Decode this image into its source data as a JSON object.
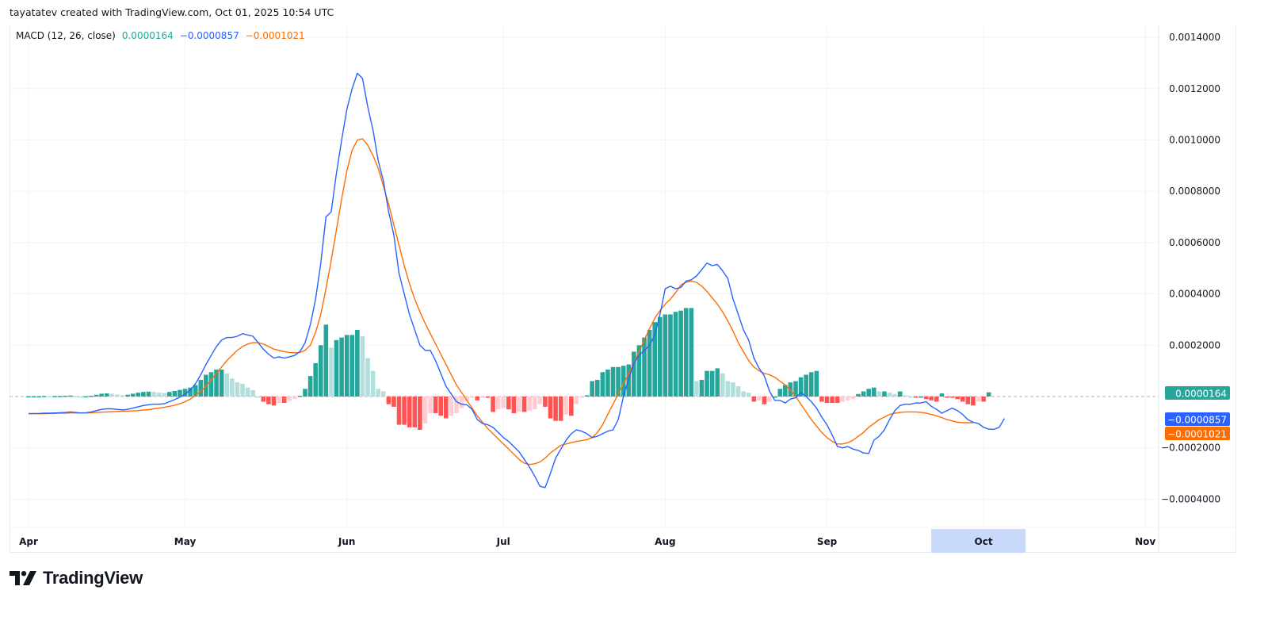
{
  "header": {
    "attribution": "tayatatev created with TradingView.com, Oct 01, 2025 10:54 UTC"
  },
  "legend": {
    "indicator": "MACD (12, 26, close)",
    "histogram_value": "0.0000164",
    "macd_value": "−0.0000857",
    "signal_value": "−0.0001021"
  },
  "badges": {
    "histogram": "0.0000164",
    "macd": "−0.0000857",
    "signal": "−0.0001021"
  },
  "footer": {
    "logo_text": "TradingView"
  },
  "colors": {
    "macd_line": "#2962ff",
    "signal_line": "#ff6d00",
    "hist_up_strong": "#26a69a",
    "hist_up_weak": "#b2dfdb",
    "hist_down_strong": "#ff5252",
    "hist_down_weak": "#ffcdd2",
    "grid": "#f0f3fa",
    "time_highlight": "#c9d9fc"
  },
  "chart_data": {
    "type": "line",
    "title": "MACD (12, 26, close)",
    "xlabel": "",
    "ylabel": "",
    "unit_note": "series values in units of 1e-4",
    "x_start": "Apr 1",
    "x_end": "Oct 1",
    "time_ticks": [
      {
        "label": "Apr",
        "day": 0
      },
      {
        "label": "May",
        "day": 30
      },
      {
        "label": "Jun",
        "day": 61
      },
      {
        "label": "Jul",
        "day": 91
      },
      {
        "label": "Aug",
        "day": 122
      },
      {
        "label": "Sep",
        "day": 153
      },
      {
        "label": "Oct",
        "day": 183,
        "highlighted": true
      },
      {
        "label": "Nov",
        "day": 214
      }
    ],
    "y_ticks": [
      "0.0014000",
      "0.0012000",
      "0.0010000",
      "0.0008000",
      "0.0006000",
      "0.0004000",
      "0.0002000",
      "−0.0002000",
      "−0.0004000"
    ],
    "y_tick_values": [
      14,
      12,
      10,
      8,
      6,
      4,
      2,
      -2,
      -4
    ],
    "ylim": [
      -4.2,
      14.2
    ],
    "grid": true,
    "series": [
      {
        "name": "MACD",
        "color": "#2962ff",
        "values": [
          -0.66,
          -0.66,
          -0.66,
          -0.65,
          -0.65,
          -0.64,
          -0.63,
          -0.62,
          -0.6,
          -0.62,
          -0.64,
          -0.63,
          -0.6,
          -0.55,
          -0.5,
          -0.48,
          -0.48,
          -0.5,
          -0.52,
          -0.5,
          -0.45,
          -0.4,
          -0.35,
          -0.32,
          -0.3,
          -0.3,
          -0.28,
          -0.2,
          -0.12,
          -0.02,
          0.1,
          0.25,
          0.5,
          0.85,
          1.25,
          1.6,
          1.95,
          2.2,
          2.3,
          2.3,
          2.35,
          2.45,
          2.4,
          2.35,
          2.1,
          1.85,
          1.65,
          1.5,
          1.55,
          1.5,
          1.55,
          1.6,
          1.75,
          2.1,
          2.8,
          3.8,
          5.2,
          7.0,
          7.2,
          8.7,
          10.0,
          11.2,
          12.0,
          12.6,
          12.4,
          11.3,
          10.4,
          9.2,
          8.4,
          7.2,
          6.3,
          4.8,
          4.0,
          3.2,
          2.6,
          2.0,
          1.8,
          1.8,
          1.4,
          0.9,
          0.4,
          0.1,
          -0.2,
          -0.3,
          -0.32,
          -0.5,
          -0.9,
          -1.05,
          -1.1,
          -1.2,
          -1.4,
          -1.6,
          -1.75,
          -1.95,
          -2.15,
          -2.45,
          -2.75,
          -3.1,
          -3.5,
          -3.55,
          -3.0,
          -2.4,
          -2.05,
          -1.7,
          -1.45,
          -1.3,
          -1.35,
          -1.45,
          -1.6,
          -1.55,
          -1.45,
          -1.35,
          -1.3,
          -0.9,
          0.0,
          0.7,
          1.3,
          1.6,
          1.8,
          2.0,
          2.4,
          3.2,
          4.2,
          4.3,
          4.2,
          4.25,
          4.5,
          4.55,
          4.7,
          4.95,
          5.2,
          5.1,
          5.15,
          4.9,
          4.6,
          3.8,
          3.2,
          2.6,
          2.2,
          1.5,
          1.1,
          0.8,
          0.2,
          -0.15,
          -0.15,
          -0.25,
          -0.1,
          -0.05,
          0.15,
          0.0,
          -0.2,
          -0.45,
          -0.8,
          -1.1,
          -1.5,
          -1.95,
          -2.0,
          -1.95,
          -2.05,
          -2.1,
          -2.2,
          -2.22,
          -1.7,
          -1.55,
          -1.3,
          -0.9,
          -0.55,
          -0.35,
          -0.3,
          -0.3,
          -0.25,
          -0.25,
          -0.2,
          -0.38,
          -0.5,
          -0.65,
          -0.55,
          -0.45,
          -0.55,
          -0.7,
          -0.9,
          -1.0,
          -1.05,
          -1.2,
          -1.27,
          -1.28,
          -1.2,
          -0.857
        ]
      },
      {
        "name": "Signal",
        "color": "#ff6d00",
        "values": [
          -0.67,
          -0.67,
          -0.67,
          -0.67,
          -0.66,
          -0.66,
          -0.65,
          -0.65,
          -0.64,
          -0.64,
          -0.64,
          -0.64,
          -0.63,
          -0.62,
          -0.61,
          -0.6,
          -0.59,
          -0.58,
          -0.57,
          -0.57,
          -0.56,
          -0.55,
          -0.53,
          -0.51,
          -0.48,
          -0.45,
          -0.42,
          -0.38,
          -0.34,
          -0.28,
          -0.2,
          -0.1,
          0.05,
          0.2,
          0.4,
          0.65,
          0.9,
          1.15,
          1.4,
          1.6,
          1.8,
          1.95,
          2.05,
          2.1,
          2.1,
          2.05,
          1.95,
          1.85,
          1.8,
          1.75,
          1.72,
          1.7,
          1.72,
          1.8,
          2.0,
          2.5,
          3.2,
          4.2,
          5.3,
          6.5,
          7.7,
          8.8,
          9.6,
          10.0,
          10.05,
          9.8,
          9.4,
          8.9,
          8.2,
          7.5,
          6.7,
          5.9,
          5.1,
          4.4,
          3.8,
          3.3,
          2.85,
          2.45,
          2.05,
          1.65,
          1.25,
          0.85,
          0.45,
          0.15,
          -0.15,
          -0.45,
          -0.75,
          -1.0,
          -1.25,
          -1.45,
          -1.65,
          -1.85,
          -2.05,
          -2.25,
          -2.45,
          -2.6,
          -2.65,
          -2.62,
          -2.55,
          -2.4,
          -2.2,
          -2.05,
          -1.9,
          -1.85,
          -1.8,
          -1.75,
          -1.72,
          -1.68,
          -1.6,
          -1.4,
          -1.1,
          -0.7,
          -0.3,
          0.1,
          0.5,
          0.9,
          1.3,
          1.75,
          2.2,
          2.65,
          3.05,
          3.35,
          3.6,
          3.8,
          4.05,
          4.35,
          4.45,
          4.5,
          4.45,
          4.3,
          4.1,
          3.85,
          3.6,
          3.3,
          2.95,
          2.55,
          2.1,
          1.75,
          1.4,
          1.15,
          1.0,
          0.9,
          0.85,
          0.75,
          0.6,
          0.45,
          0.25,
          0.0,
          -0.3,
          -0.6,
          -0.9,
          -1.15,
          -1.4,
          -1.6,
          -1.75,
          -1.85,
          -1.85,
          -1.8,
          -1.7,
          -1.55,
          -1.4,
          -1.2,
          -1.05,
          -0.9,
          -0.8,
          -0.7,
          -0.65,
          -0.62,
          -0.6,
          -0.6,
          -0.6,
          -0.62,
          -0.65,
          -0.7,
          -0.75,
          -0.82,
          -0.9,
          -0.95,
          -1.0,
          -1.02,
          -1.02,
          -1.021
        ]
      },
      {
        "name": "Histogram",
        "type": "bar",
        "values": [
          0.01,
          0.01,
          0.01,
          0.02,
          0.01,
          0.02,
          0.02,
          0.03,
          0.04,
          0.02,
          0.0,
          0.01,
          0.03,
          0.07,
          0.11,
          0.12,
          0.11,
          0.08,
          0.05,
          0.07,
          0.11,
          0.15,
          0.18,
          0.19,
          0.18,
          0.15,
          0.14,
          0.18,
          0.22,
          0.26,
          0.3,
          0.35,
          0.45,
          0.65,
          0.85,
          0.95,
          1.05,
          1.05,
          0.9,
          0.7,
          0.55,
          0.5,
          0.35,
          0.25,
          0.0,
          -0.2,
          -0.3,
          -0.35,
          -0.25,
          -0.25,
          -0.17,
          -0.1,
          0.03,
          0.3,
          0.8,
          1.3,
          2.0,
          2.8,
          1.9,
          2.2,
          2.3,
          2.4,
          2.4,
          2.6,
          2.35,
          1.5,
          1.0,
          0.3,
          0.2,
          -0.3,
          -0.4,
          -1.1,
          -1.1,
          -1.2,
          -1.2,
          -1.3,
          -1.05,
          -0.65,
          -0.65,
          -0.75,
          -0.85,
          -0.75,
          -0.65,
          -0.45,
          -0.17,
          -0.05,
          -0.15,
          -0.05,
          -0.05,
          -0.6,
          -0.5,
          -0.45,
          -0.5,
          -0.65,
          -0.6,
          -0.6,
          -0.55,
          -0.5,
          -0.3,
          -0.4,
          -0.85,
          -0.95,
          -0.95,
          -0.7,
          -0.75,
          -0.3,
          -0.05,
          0.05,
          0.6,
          0.65,
          0.95,
          1.05,
          1.15,
          1.15,
          1.2,
          1.25,
          1.75,
          2.0,
          2.3,
          2.6,
          2.9,
          3.1,
          3.2,
          3.2,
          3.3,
          3.35,
          3.45,
          3.45,
          0.6,
          0.65,
          1.0,
          1.0,
          1.1,
          0.9,
          0.6,
          0.55,
          0.4,
          0.2,
          0.15,
          -0.2,
          -0.15,
          -0.3,
          -0.2,
          0.0,
          0.3,
          0.45,
          0.55,
          0.6,
          0.75,
          0.85,
          0.95,
          1.0,
          -0.2,
          -0.25,
          -0.25,
          -0.25,
          -0.2,
          -0.15,
          -0.1,
          0.1,
          0.2,
          0.3,
          0.35,
          0.2,
          0.2,
          0.15,
          0.1,
          0.2,
          0.05,
          0.0,
          -0.02,
          0.0,
          -0.1,
          -0.15,
          -0.2,
          0.12,
          -0.02,
          -0.05,
          -0.1,
          -0.2,
          -0.3,
          -0.35,
          -0.2,
          -0.2,
          0.164
        ]
      }
    ],
    "last_values": {
      "histogram": 1.64e-05,
      "macd": -8.57e-05,
      "signal": -0.0001021
    }
  }
}
